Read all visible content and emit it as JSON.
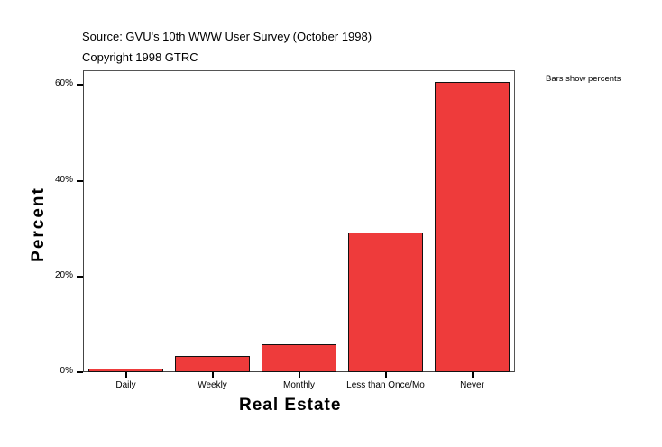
{
  "header": {
    "source": "Source: GVU's 10th WWW User Survey (October 1998)",
    "copyright": "Copyright 1998 GTRC"
  },
  "note": "Bars show percents",
  "axes": {
    "xlabel": "Real Estate",
    "ylabel": "Percent",
    "yticks": [
      "0%",
      "20%",
      "40%",
      "60%"
    ]
  },
  "colors": {
    "bar": "#ee3b3b",
    "bar_border": "#111111"
  },
  "chart_data": {
    "type": "bar",
    "title": "Source: GVU's 10th WWW User Survey (October 1998)",
    "subtitle": "Copyright 1998 GTRC",
    "annotation": "Bars show percents",
    "categories": [
      "Daily",
      "Weekly",
      "Monthly",
      "Less than Once/Mo",
      "Never"
    ],
    "values": [
      0.8,
      3.5,
      6.0,
      29.1,
      60.6
    ],
    "xlabel": "Real Estate",
    "ylabel": "Percent",
    "ylim": [
      0,
      60
    ],
    "ytick_labels": [
      "0%",
      "20%",
      "40%",
      "60%"
    ],
    "grid": false,
    "legend": "none"
  }
}
